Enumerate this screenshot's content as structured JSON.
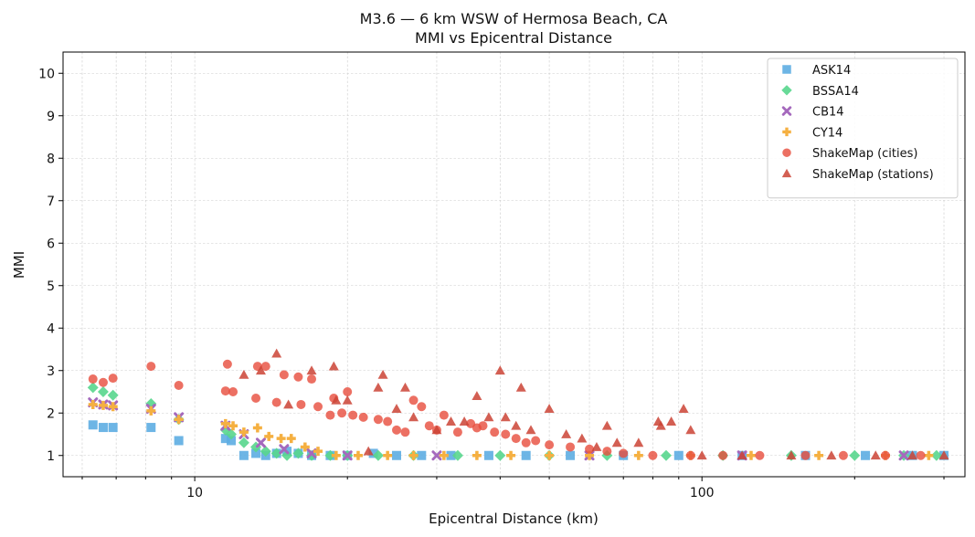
{
  "chart_data": {
    "type": "scatter",
    "title": "M3.6 — 6 km WSW of Hermosa Beach, CA",
    "subtitle": "MMI vs Epicentral Distance",
    "xlabel": "Epicentral Distance (km)",
    "ylabel": "MMI",
    "xscale": "log",
    "xlim": [
      5.5,
      330
    ],
    "ylim": [
      0.5,
      10.5
    ],
    "xticks": [
      10,
      100
    ],
    "xtick_labels": [
      "10",
      "100"
    ],
    "yticks": [
      1,
      2,
      3,
      4,
      5,
      6,
      7,
      8,
      9,
      10
    ],
    "ytick_labels": [
      "1",
      "2",
      "3",
      "4",
      "5",
      "6",
      "7",
      "8",
      "9",
      "10"
    ],
    "grid": true,
    "legend_position": "top-right",
    "series": [
      {
        "name": "ASK14",
        "marker": "square",
        "color": "#5dade2",
        "points": [
          [
            6.3,
            1.72
          ],
          [
            6.6,
            1.66
          ],
          [
            6.9,
            1.66
          ],
          [
            8.2,
            1.66
          ],
          [
            9.3,
            1.35
          ],
          [
            11.5,
            1.4
          ],
          [
            11.8,
            1.35
          ],
          [
            12.5,
            1.0
          ],
          [
            13.2,
            1.05
          ],
          [
            13.8,
            1.0
          ],
          [
            14.5,
            1.05
          ],
          [
            15.2,
            1.1
          ],
          [
            16.0,
            1.05
          ],
          [
            17.0,
            1.0
          ],
          [
            18.5,
            1.0
          ],
          [
            20.0,
            1.0
          ],
          [
            22.5,
            1.05
          ],
          [
            25.0,
            1.0
          ],
          [
            28.0,
            1.0
          ],
          [
            32.0,
            1.0
          ],
          [
            38.0,
            1.0
          ],
          [
            45.0,
            1.0
          ],
          [
            55.0,
            1.0
          ],
          [
            70.0,
            1.0
          ],
          [
            90.0,
            1.0
          ],
          [
            120.0,
            1.0
          ],
          [
            160.0,
            1.0
          ],
          [
            210.0,
            1.0
          ],
          [
            260.0,
            1.0
          ],
          [
            300.0,
            1.0
          ]
        ]
      },
      {
        "name": "BSSA14",
        "marker": "diamond",
        "color": "#58d68d",
        "points": [
          [
            6.3,
            2.6
          ],
          [
            6.6,
            2.5
          ],
          [
            6.9,
            2.42
          ],
          [
            8.2,
            2.22
          ],
          [
            9.3,
            1.85
          ],
          [
            11.5,
            1.6
          ],
          [
            11.8,
            1.5
          ],
          [
            12.5,
            1.3
          ],
          [
            13.2,
            1.2
          ],
          [
            13.8,
            1.1
          ],
          [
            14.5,
            1.05
          ],
          [
            15.2,
            1.0
          ],
          [
            16.0,
            1.05
          ],
          [
            17.0,
            1.0
          ],
          [
            18.5,
            1.0
          ],
          [
            20.0,
            1.0
          ],
          [
            23.0,
            1.0
          ],
          [
            27.0,
            1.0
          ],
          [
            33.0,
            1.0
          ],
          [
            40.0,
            1.0
          ],
          [
            50.0,
            1.0
          ],
          [
            65.0,
            1.0
          ],
          [
            85.0,
            1.0
          ],
          [
            110.0,
            1.0
          ],
          [
            150.0,
            1.0
          ],
          [
            200.0,
            1.0
          ],
          [
            250.0,
            1.0
          ],
          [
            290.0,
            1.0
          ]
        ]
      },
      {
        "name": "CB14",
        "marker": "x",
        "color": "#a569bd",
        "points": [
          [
            6.3,
            2.25
          ],
          [
            6.6,
            2.2
          ],
          [
            6.9,
            2.18
          ],
          [
            8.2,
            2.1
          ],
          [
            9.3,
            1.9
          ],
          [
            11.5,
            1.7
          ],
          [
            12.5,
            1.5
          ],
          [
            13.5,
            1.3
          ],
          [
            15.0,
            1.15
          ],
          [
            17.0,
            1.05
          ],
          [
            20.0,
            1.0
          ],
          [
            30.0,
            1.0
          ],
          [
            60.0,
            1.0
          ],
          [
            120.0,
            1.0
          ],
          [
            250.0,
            1.0
          ]
        ]
      },
      {
        "name": "CY14",
        "marker": "plus",
        "color": "#f5b041",
        "points": [
          [
            6.3,
            2.2
          ],
          [
            6.6,
            2.18
          ],
          [
            6.9,
            2.15
          ],
          [
            8.2,
            2.05
          ],
          [
            9.3,
            1.85
          ],
          [
            11.5,
            1.75
          ],
          [
            11.9,
            1.7
          ],
          [
            12.5,
            1.55
          ],
          [
            13.3,
            1.65
          ],
          [
            14.0,
            1.45
          ],
          [
            14.8,
            1.4
          ],
          [
            15.5,
            1.4
          ],
          [
            16.5,
            1.2
          ],
          [
            17.5,
            1.1
          ],
          [
            19.0,
            1.0
          ],
          [
            21.0,
            1.0
          ],
          [
            24.0,
            1.0
          ],
          [
            27.0,
            1.0
          ],
          [
            31.0,
            1.0
          ],
          [
            36.0,
            1.0
          ],
          [
            42.0,
            1.0
          ],
          [
            50.0,
            1.0
          ],
          [
            60.0,
            1.0
          ],
          [
            75.0,
            1.0
          ],
          [
            95.0,
            1.0
          ],
          [
            125.0,
            1.0
          ],
          [
            170.0,
            1.0
          ],
          [
            230.0,
            1.0
          ],
          [
            280.0,
            1.0
          ]
        ]
      },
      {
        "name": "ShakeMap (cities)",
        "marker": "circle",
        "color": "#e74c3c",
        "points": [
          [
            6.3,
            2.8
          ],
          [
            6.6,
            2.72
          ],
          [
            6.9,
            2.82
          ],
          [
            8.2,
            3.1
          ],
          [
            9.3,
            2.65
          ],
          [
            11.5,
            2.52
          ],
          [
            11.6,
            3.15
          ],
          [
            11.9,
            2.5
          ],
          [
            13.2,
            2.35
          ],
          [
            13.3,
            3.1
          ],
          [
            13.8,
            3.1
          ],
          [
            14.5,
            2.25
          ],
          [
            15.0,
            2.9
          ],
          [
            16.0,
            2.85
          ],
          [
            16.2,
            2.2
          ],
          [
            17.0,
            2.8
          ],
          [
            17.5,
            2.15
          ],
          [
            18.5,
            1.95
          ],
          [
            18.8,
            2.35
          ],
          [
            19.5,
            2.0
          ],
          [
            20.0,
            2.5
          ],
          [
            20.5,
            1.95
          ],
          [
            21.5,
            1.9
          ],
          [
            23.0,
            1.85
          ],
          [
            24.0,
            1.8
          ],
          [
            25.0,
            1.6
          ],
          [
            26.0,
            1.55
          ],
          [
            27.0,
            2.3
          ],
          [
            28.0,
            2.15
          ],
          [
            29.0,
            1.7
          ],
          [
            30.0,
            1.6
          ],
          [
            31.0,
            1.95
          ],
          [
            33.0,
            1.55
          ],
          [
            35.0,
            1.75
          ],
          [
            36.0,
            1.65
          ],
          [
            37.0,
            1.7
          ],
          [
            39.0,
            1.55
          ],
          [
            41.0,
            1.5
          ],
          [
            43.0,
            1.4
          ],
          [
            45.0,
            1.3
          ],
          [
            47.0,
            1.35
          ],
          [
            50.0,
            1.25
          ],
          [
            55.0,
            1.2
          ],
          [
            60.0,
            1.15
          ],
          [
            65.0,
            1.1
          ],
          [
            70.0,
            1.05
          ],
          [
            80.0,
            1.0
          ],
          [
            95.0,
            1.0
          ],
          [
            110.0,
            1.0
          ],
          [
            130.0,
            1.0
          ],
          [
            160.0,
            1.0
          ],
          [
            190.0,
            1.0
          ],
          [
            230.0,
            1.0
          ],
          [
            270.0,
            1.0
          ]
        ]
      },
      {
        "name": "ShakeMap (stations)",
        "marker": "triangle",
        "color": "#cb4335",
        "points": [
          [
            12.5,
            2.9
          ],
          [
            13.5,
            3.0
          ],
          [
            14.5,
            3.4
          ],
          [
            15.3,
            2.2
          ],
          [
            17.0,
            3.0
          ],
          [
            18.8,
            3.1
          ],
          [
            19.0,
            2.3
          ],
          [
            20.0,
            2.3
          ],
          [
            22.0,
            1.1
          ],
          [
            23.0,
            2.6
          ],
          [
            23.5,
            2.9
          ],
          [
            25.0,
            2.1
          ],
          [
            26.0,
            2.6
          ],
          [
            27.0,
            1.9
          ],
          [
            30.0,
            1.6
          ],
          [
            32.0,
            1.8
          ],
          [
            34.0,
            1.8
          ],
          [
            36.0,
            2.4
          ],
          [
            38.0,
            1.9
          ],
          [
            40.0,
            3.0
          ],
          [
            41.0,
            1.9
          ],
          [
            43.0,
            1.7
          ],
          [
            44.0,
            2.6
          ],
          [
            46.0,
            1.6
          ],
          [
            50.0,
            2.1
          ],
          [
            54.0,
            1.5
          ],
          [
            58.0,
            1.4
          ],
          [
            62.0,
            1.2
          ],
          [
            65.0,
            1.7
          ],
          [
            68.0,
            1.3
          ],
          [
            75.0,
            1.3
          ],
          [
            82.0,
            1.8
          ],
          [
            83.0,
            1.7
          ],
          [
            87.0,
            1.8
          ],
          [
            92.0,
            2.1
          ],
          [
            95.0,
            1.6
          ],
          [
            100.0,
            1.0
          ],
          [
            120.0,
            1.0
          ],
          [
            150.0,
            1.0
          ],
          [
            180.0,
            1.0
          ],
          [
            220.0,
            1.0
          ],
          [
            260.0,
            1.0
          ],
          [
            300.0,
            1.0
          ]
        ]
      }
    ]
  }
}
